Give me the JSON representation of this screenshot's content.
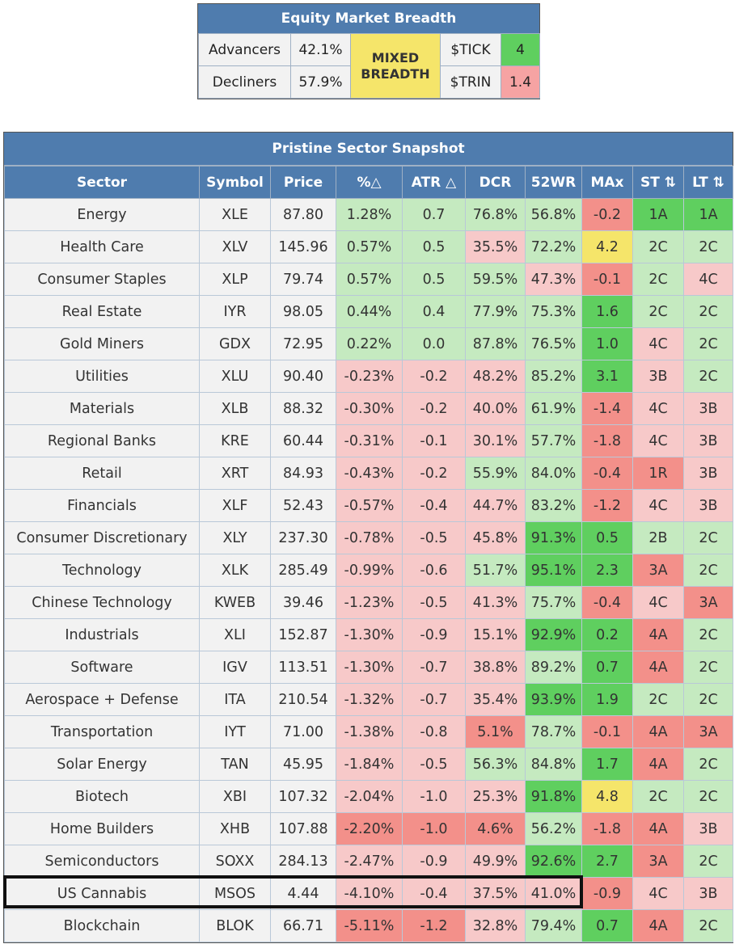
{
  "breadth": {
    "title": "Equity Market Breadth",
    "advancers_label": "Advancers",
    "advancers_value": "42.1%",
    "decliners_label": "Decliners",
    "decliners_value": "57.9%",
    "status_line1": "MIXED",
    "status_line2": "BREADTH",
    "tick_label": "$TICK",
    "tick_value": "4",
    "trin_label": "$TRIN",
    "trin_value": "1.4"
  },
  "snapshot": {
    "title": "Pristine Sector Snapshot",
    "columns": [
      "Sector",
      "Symbol",
      "Price",
      "%△",
      "ATR △",
      "DCR",
      "52WR",
      "MAx",
      "ST ⇅",
      "LT ⇅"
    ],
    "rows": [
      {
        "sector": "Energy",
        "symbol": "XLE",
        "price": "87.80",
        "pct": "1.28%",
        "atr": "0.7",
        "dcr": "76.8%",
        "wr52": "56.8%",
        "max": "-0.2",
        "st": "1A",
        "lt": "1A"
      },
      {
        "sector": "Health Care",
        "symbol": "XLV",
        "price": "145.96",
        "pct": "0.57%",
        "atr": "0.5",
        "dcr": "35.5%",
        "wr52": "72.2%",
        "max": "4.2",
        "st": "2C",
        "lt": "2C"
      },
      {
        "sector": "Consumer Staples",
        "symbol": "XLP",
        "price": "79.74",
        "pct": "0.57%",
        "atr": "0.5",
        "dcr": "59.5%",
        "wr52": "47.3%",
        "max": "-0.1",
        "st": "2C",
        "lt": "4C"
      },
      {
        "sector": "Real Estate",
        "symbol": "IYR",
        "price": "98.05",
        "pct": "0.44%",
        "atr": "0.4",
        "dcr": "77.9%",
        "wr52": "75.3%",
        "max": "1.6",
        "st": "2C",
        "lt": "2C"
      },
      {
        "sector": "Gold Miners",
        "symbol": "GDX",
        "price": "72.95",
        "pct": "0.22%",
        "atr": "0.0",
        "dcr": "87.8%",
        "wr52": "76.5%",
        "max": "1.0",
        "st": "4C",
        "lt": "2C"
      },
      {
        "sector": "Utilities",
        "symbol": "XLU",
        "price": "90.40",
        "pct": "-0.23%",
        "atr": "-0.2",
        "dcr": "48.2%",
        "wr52": "85.2%",
        "max": "3.1",
        "st": "3B",
        "lt": "2C"
      },
      {
        "sector": "Materials",
        "symbol": "XLB",
        "price": "88.32",
        "pct": "-0.30%",
        "atr": "-0.2",
        "dcr": "40.0%",
        "wr52": "61.9%",
        "max": "-1.4",
        "st": "4C",
        "lt": "3B"
      },
      {
        "sector": "Regional Banks",
        "symbol": "KRE",
        "price": "60.44",
        "pct": "-0.31%",
        "atr": "-0.1",
        "dcr": "30.1%",
        "wr52": "57.7%",
        "max": "-1.8",
        "st": "4C",
        "lt": "3B"
      },
      {
        "sector": "Retail",
        "symbol": "XRT",
        "price": "84.93",
        "pct": "-0.43%",
        "atr": "-0.2",
        "dcr": "55.9%",
        "wr52": "84.0%",
        "max": "-0.4",
        "st": "1R",
        "lt": "3B"
      },
      {
        "sector": "Financials",
        "symbol": "XLF",
        "price": "52.43",
        "pct": "-0.57%",
        "atr": "-0.4",
        "dcr": "44.7%",
        "wr52": "83.2%",
        "max": "-1.2",
        "st": "4C",
        "lt": "3B"
      },
      {
        "sector": "Consumer Discretionary",
        "symbol": "XLY",
        "price": "237.30",
        "pct": "-0.78%",
        "atr": "-0.5",
        "dcr": "45.8%",
        "wr52": "91.3%",
        "max": "0.5",
        "st": "2B",
        "lt": "2C"
      },
      {
        "sector": "Technology",
        "symbol": "XLK",
        "price": "285.49",
        "pct": "-0.99%",
        "atr": "-0.6",
        "dcr": "51.7%",
        "wr52": "95.1%",
        "max": "2.3",
        "st": "3A",
        "lt": "2C"
      },
      {
        "sector": "Chinese Technology",
        "symbol": "KWEB",
        "price": "39.46",
        "pct": "-1.23%",
        "atr": "-0.5",
        "dcr": "41.3%",
        "wr52": "75.7%",
        "max": "-0.4",
        "st": "4C",
        "lt": "3A"
      },
      {
        "sector": "Industrials",
        "symbol": "XLI",
        "price": "152.87",
        "pct": "-1.30%",
        "atr": "-0.9",
        "dcr": "15.1%",
        "wr52": "92.9%",
        "max": "0.2",
        "st": "4A",
        "lt": "2C"
      },
      {
        "sector": "Software",
        "symbol": "IGV",
        "price": "113.51",
        "pct": "-1.30%",
        "atr": "-0.7",
        "dcr": "38.8%",
        "wr52": "89.2%",
        "max": "0.7",
        "st": "4A",
        "lt": "2C"
      },
      {
        "sector": "Aerospace + Defense",
        "symbol": "ITA",
        "price": "210.54",
        "pct": "-1.32%",
        "atr": "-0.7",
        "dcr": "35.4%",
        "wr52": "93.9%",
        "max": "1.9",
        "st": "2C",
        "lt": "2C"
      },
      {
        "sector": "Transportation",
        "symbol": "IYT",
        "price": "71.00",
        "pct": "-1.38%",
        "atr": "-0.8",
        "dcr": "5.1%",
        "wr52": "78.7%",
        "max": "-0.1",
        "st": "4A",
        "lt": "3A"
      },
      {
        "sector": "Solar Energy",
        "symbol": "TAN",
        "price": "45.95",
        "pct": "-1.84%",
        "atr": "-0.5",
        "dcr": "56.3%",
        "wr52": "84.8%",
        "max": "1.7",
        "st": "4A",
        "lt": "2C"
      },
      {
        "sector": "Biotech",
        "symbol": "XBI",
        "price": "107.32",
        "pct": "-2.04%",
        "atr": "-1.0",
        "dcr": "25.3%",
        "wr52": "91.8%",
        "max": "4.8",
        "st": "2C",
        "lt": "2C"
      },
      {
        "sector": "Home Builders",
        "symbol": "XHB",
        "price": "107.88",
        "pct": "-2.20%",
        "atr": "-1.0",
        "dcr": "4.6%",
        "wr52": "56.2%",
        "max": "-1.8",
        "st": "4A",
        "lt": "3B"
      },
      {
        "sector": "Semiconductors",
        "symbol": "SOXX",
        "price": "284.13",
        "pct": "-2.47%",
        "atr": "-0.9",
        "dcr": "49.9%",
        "wr52": "92.6%",
        "max": "2.7",
        "st": "3A",
        "lt": "2C"
      },
      {
        "sector": "US Cannabis",
        "symbol": "MSOS",
        "price": "4.44",
        "pct": "-4.10%",
        "atr": "-0.4",
        "dcr": "37.5%",
        "wr52": "41.0%",
        "max": "-0.9",
        "st": "4C",
        "lt": "3B"
      },
      {
        "sector": "Blockchain",
        "symbol": "BLOK",
        "price": "66.71",
        "pct": "-5.11%",
        "atr": "-1.2",
        "dcr": "32.8%",
        "wr52": "79.4%",
        "max": "0.7",
        "st": "4A",
        "lt": "2C"
      }
    ]
  }
}
